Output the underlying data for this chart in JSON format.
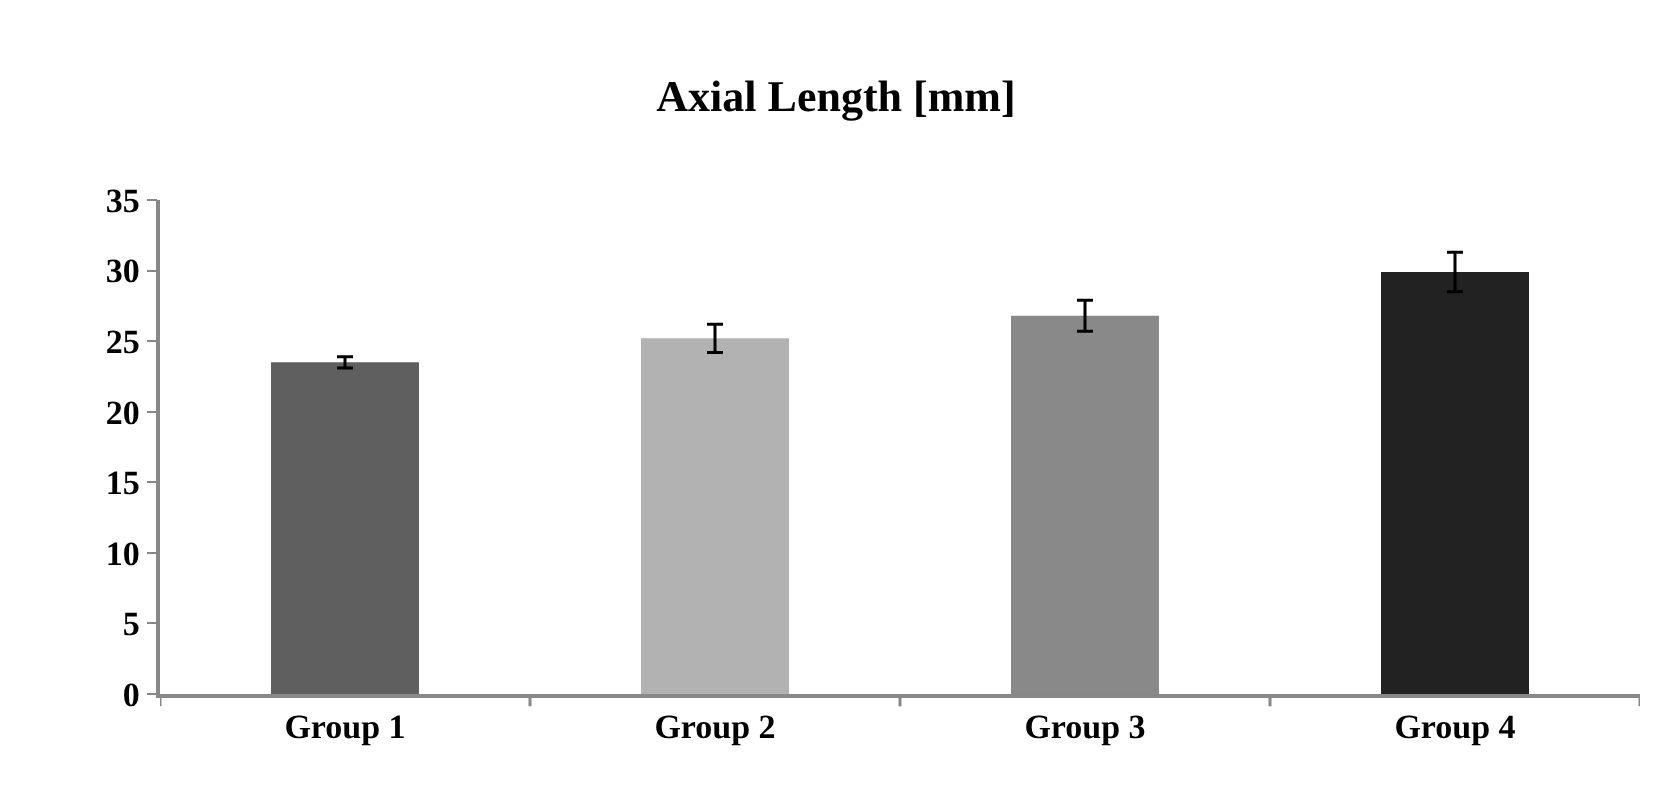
{
  "chart_data": {
    "type": "bar",
    "title": "Axial Length [mm]",
    "categories": [
      "Group 1",
      "Group 2",
      "Group 3",
      "Group 4"
    ],
    "values": [
      23.5,
      25.2,
      26.8,
      29.9
    ],
    "errors": [
      0.4,
      1.0,
      1.1,
      1.4
    ],
    "colors": [
      "#5f5f5f",
      "#b2b2b2",
      "#898989",
      "#222222"
    ],
    "ylim": [
      0,
      35
    ],
    "yticks": [
      0,
      5,
      10,
      15,
      20,
      25,
      30,
      35
    ],
    "grid": false
  }
}
